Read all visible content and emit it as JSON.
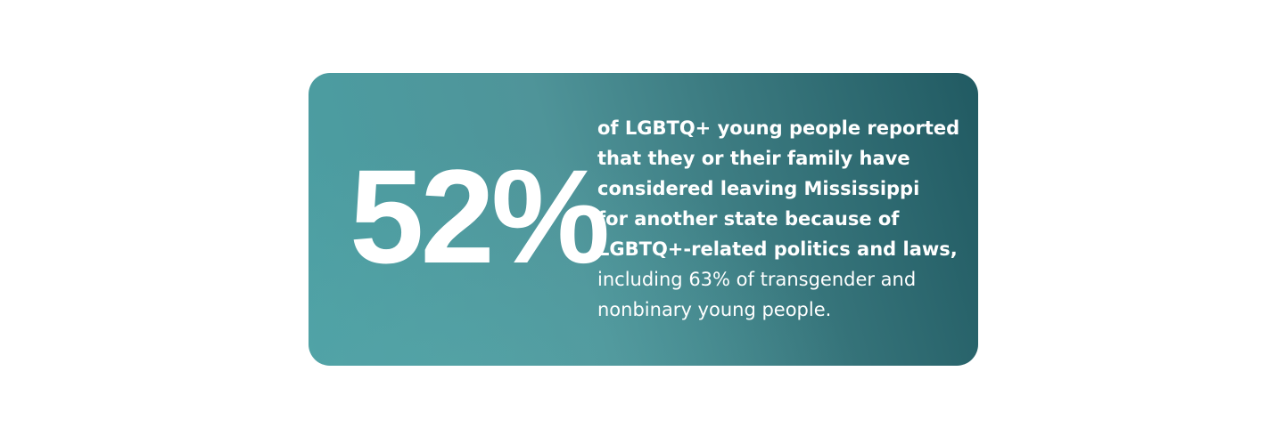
{
  "card": {
    "stat": "52%",
    "bold_lines": [
      "of LGBTQ+ young people reported",
      "that they or their family have",
      "considered leaving Mississippi",
      "for another state because of",
      "LGBTQ+-related politics and laws,"
    ],
    "regular_lines": [
      "including 63% of transgender and",
      "nonbinary young people."
    ]
  }
}
